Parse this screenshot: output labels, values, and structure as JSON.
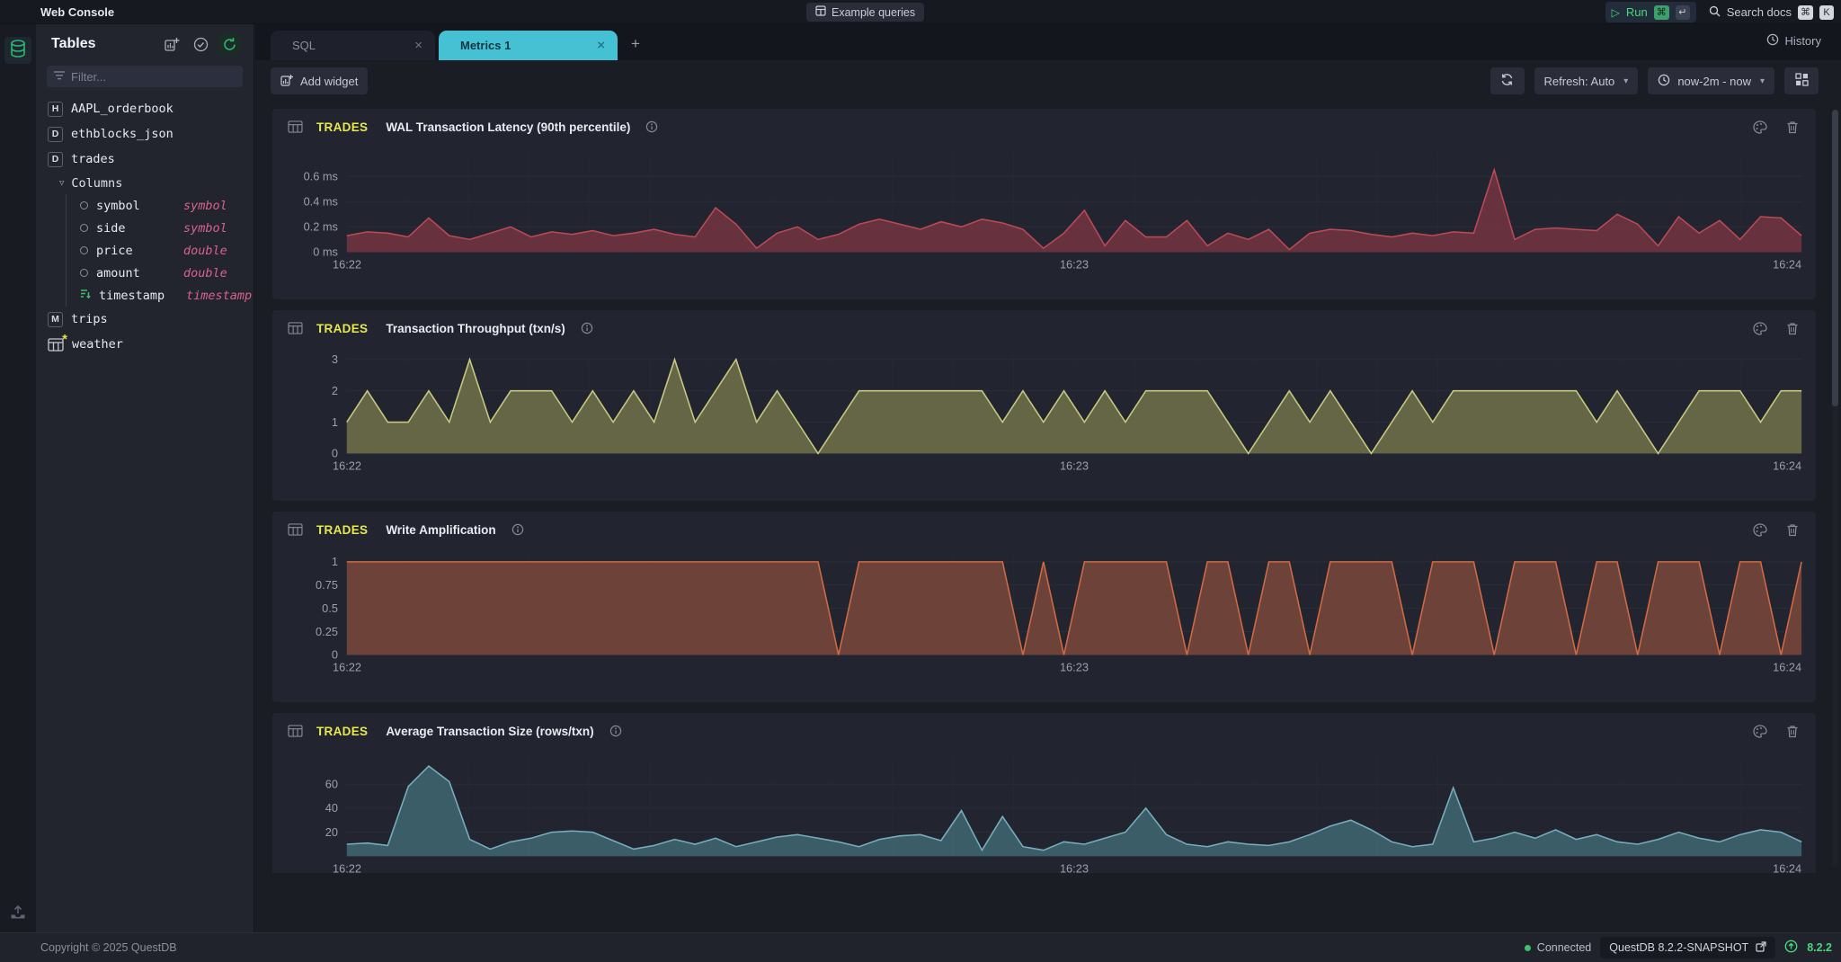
{
  "app": {
    "title": "Web Console"
  },
  "topbar": {
    "example_queries": "Example queries",
    "run_label": "Run",
    "run_shortcuts": [
      "⌘",
      "↵"
    ],
    "search_docs": "Search docs",
    "search_shortcuts": [
      "⌘",
      "K"
    ]
  },
  "icons": {
    "play": "▷",
    "close": "×",
    "plus": "+",
    "chevron_down": "▾",
    "triangle_down": "▽",
    "asterisk": "*"
  },
  "sidebar": {
    "title": "Tables",
    "filter_placeholder": "Filter...",
    "columns_label": "Columns",
    "tables": [
      {
        "badge": "H",
        "name": "AAPL_orderbook"
      },
      {
        "badge": "D",
        "name": "ethblocks_json"
      },
      {
        "badge": "D",
        "name": "trades"
      },
      {
        "badge": "M",
        "name": "trips"
      },
      {
        "badge": "",
        "name": "weather"
      }
    ],
    "trades_columns": [
      {
        "name": "symbol",
        "type": "symbol"
      },
      {
        "name": "side",
        "type": "symbol"
      },
      {
        "name": "price",
        "type": "double"
      },
      {
        "name": "amount",
        "type": "double"
      },
      {
        "name": "timestamp",
        "type": "timestamp"
      }
    ]
  },
  "tabs": {
    "sql": "SQL",
    "metrics": "Metrics 1",
    "history": "History"
  },
  "toolbar": {
    "add_widget": "Add widget",
    "refresh_mode": "Refresh: Auto",
    "time_range": "now-2m - now"
  },
  "footer": {
    "copyright": "Copyright © 2025 QuestDB",
    "connection_status": "Connected",
    "version_full": "QuestDB 8.2.2-SNAPSHOT",
    "version_short": "8.2.2"
  },
  "colors": {
    "accent_cyan": "#46c1d4",
    "accent_yellow": "#e6e94f",
    "accent_green": "#45d97e",
    "type_pink": "#d9628e",
    "background": "#1b1d25",
    "panel": "#22242e"
  },
  "chart_data": [
    {
      "type": "area",
      "table": "TRADES",
      "title": "WAL Transaction Latency (90th percentile)",
      "unit": "ms",
      "x_ticks": [
        "16:22",
        "16:23",
        "16:24"
      ],
      "y_ticks": [
        0,
        0.2,
        0.4,
        0.6
      ],
      "y_tick_labels": [
        "0 ms",
        "0.2 ms",
        "0.4 ms",
        "0.6 ms"
      ],
      "ylim": [
        0,
        0.78
      ],
      "grid": true,
      "legend": "none",
      "line_color": "#b94a57",
      "fill_color": "#6e3340",
      "values": [
        0.13,
        0.16,
        0.15,
        0.12,
        0.27,
        0.13,
        0.1,
        0.15,
        0.2,
        0.12,
        0.16,
        0.14,
        0.17,
        0.13,
        0.15,
        0.18,
        0.14,
        0.12,
        0.35,
        0.22,
        0.03,
        0.15,
        0.2,
        0.1,
        0.14,
        0.22,
        0.26,
        0.22,
        0.18,
        0.24,
        0.2,
        0.26,
        0.23,
        0.18,
        0.03,
        0.15,
        0.33,
        0.05,
        0.25,
        0.12,
        0.12,
        0.25,
        0.05,
        0.15,
        0.1,
        0.18,
        0.02,
        0.15,
        0.18,
        0.17,
        0.14,
        0.12,
        0.15,
        0.13,
        0.16,
        0.15,
        0.65,
        0.1,
        0.18,
        0.19,
        0.18,
        0.17,
        0.3,
        0.22,
        0.05,
        0.28,
        0.15,
        0.25,
        0.1,
        0.28,
        0.27,
        0.13
      ]
    },
    {
      "type": "area",
      "table": "TRADES",
      "title": "Transaction Throughput (txn/s)",
      "unit": "txn/s",
      "x_ticks": [
        "16:22",
        "16:23",
        "16:24"
      ],
      "y_ticks": [
        0,
        1,
        2,
        3
      ],
      "y_tick_labels": [
        "0",
        "1",
        "2",
        "3"
      ],
      "ylim": [
        0,
        3.15
      ],
      "grid": true,
      "legend": "none",
      "line_color": "#c6c980",
      "fill_color": "#6b6c49",
      "values": [
        1,
        2,
        1,
        1,
        2,
        1,
        3,
        1,
        2,
        2,
        2,
        1,
        2,
        1,
        2,
        1,
        3,
        1,
        2,
        3,
        1,
        2,
        1,
        0,
        1,
        2,
        2,
        2,
        2,
        2,
        2,
        2,
        1,
        2,
        1,
        2,
        1,
        2,
        1,
        2,
        2,
        2,
        2,
        1,
        0,
        1,
        2,
        1,
        2,
        1,
        0,
        1,
        2,
        1,
        2,
        2,
        2,
        2,
        2,
        2,
        2,
        1,
        2,
        1,
        0,
        1,
        2,
        2,
        2,
        1,
        2,
        2
      ]
    },
    {
      "type": "area",
      "table": "TRADES",
      "title": "Write Amplification",
      "unit": "",
      "x_ticks": [
        "16:22",
        "16:23",
        "16:24"
      ],
      "y_ticks": [
        0,
        0.25,
        0.5,
        0.75,
        1
      ],
      "y_tick_labels": [
        "0",
        "0.25",
        "0.5",
        "0.75",
        "1"
      ],
      "ylim": [
        0,
        1.06
      ],
      "grid": true,
      "legend": "none",
      "line_color": "#cc6b44",
      "fill_color": "#74453a",
      "values": [
        1,
        1,
        1,
        1,
        1,
        1,
        1,
        1,
        1,
        1,
        1,
        1,
        1,
        1,
        1,
        1,
        1,
        1,
        1,
        1,
        1,
        1,
        1,
        1,
        0,
        1,
        1,
        1,
        1,
        1,
        1,
        1,
        1,
        0,
        1,
        0,
        1,
        1,
        1,
        1,
        1,
        0,
        1,
        1,
        0,
        1,
        1,
        0,
        1,
        1,
        1,
        1,
        0,
        1,
        1,
        1,
        0,
        1,
        1,
        1,
        0,
        1,
        1,
        0,
        1,
        1,
        1,
        0,
        1,
        1,
        0,
        1
      ]
    },
    {
      "type": "area",
      "table": "TRADES",
      "title": "Average Transaction Size (rows/txn)",
      "unit": "rows/txn",
      "x_ticks": [
        "16:22",
        "16:23",
        "16:24"
      ],
      "y_ticks": [
        20,
        40,
        60
      ],
      "y_tick_labels": [
        "20",
        "40",
        "60"
      ],
      "ylim": [
        0,
        82
      ],
      "grid": true,
      "legend": "none",
      "line_color": "#76aebc",
      "fill_color": "#3e636e",
      "values": [
        10,
        11,
        9,
        58,
        75,
        62,
        14,
        6,
        12,
        15,
        20,
        21,
        20,
        13,
        6,
        9,
        14,
        10,
        15,
        8,
        12,
        16,
        18,
        15,
        12,
        8,
        14,
        17,
        18,
        13,
        38,
        5,
        33,
        8,
        5,
        12,
        10,
        15,
        20,
        40,
        18,
        10,
        8,
        12,
        10,
        9,
        12,
        18,
        25,
        30,
        22,
        12,
        8,
        10,
        57,
        12,
        15,
        20,
        15,
        22,
        14,
        18,
        12,
        10,
        14,
        20,
        15,
        12,
        18,
        22,
        20,
        12
      ]
    }
  ]
}
